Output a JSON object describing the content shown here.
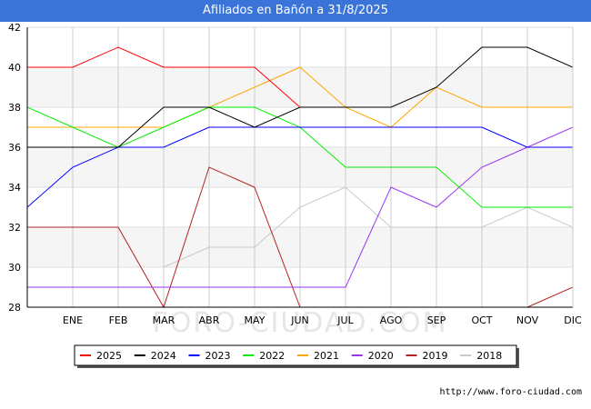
{
  "chart_data": {
    "type": "line",
    "title": "Afiliados en Bañón a 31/8/2025",
    "xlabel": "",
    "ylabel": "",
    "x": [
      "",
      "ENE",
      "FEB",
      "MAR",
      "ABR",
      "MAY",
      "JUN",
      "JUL",
      "AGO",
      "SEP",
      "OCT",
      "NOV",
      "DIC"
    ],
    "ylim": [
      28,
      42
    ],
    "yticks": [
      28,
      30,
      32,
      34,
      36,
      38,
      40,
      42
    ],
    "grid": true,
    "legend_position": "bottom",
    "series": [
      {
        "name": "2025",
        "color": "#ff0000",
        "values": [
          40,
          40,
          41,
          40,
          40,
          40,
          38,
          null,
          null,
          null,
          null,
          null,
          null
        ]
      },
      {
        "name": "2024",
        "color": "#000000",
        "values": [
          36,
          36,
          36,
          38,
          38,
          37,
          38,
          38,
          38,
          39,
          41,
          41,
          40
        ]
      },
      {
        "name": "2023",
        "color": "#0000ff",
        "values": [
          33,
          35,
          36,
          36,
          37,
          37,
          37,
          37,
          37,
          37,
          37,
          36,
          36
        ]
      },
      {
        "name": "2022",
        "color": "#00ee00",
        "values": [
          38,
          37,
          36,
          37,
          38,
          38,
          37,
          35,
          35,
          35,
          33,
          33,
          33
        ]
      },
      {
        "name": "2021",
        "color": "#ffa500",
        "values": [
          37,
          37,
          37,
          37,
          38,
          39,
          40,
          38,
          37,
          39,
          38,
          38,
          38
        ]
      },
      {
        "name": "2020",
        "color": "#9a32f0",
        "values": [
          29,
          29,
          29,
          29,
          29,
          29,
          29,
          29,
          34,
          33,
          35,
          36,
          37
        ]
      },
      {
        "name": "2019",
        "color": "#b22222",
        "values": [
          32,
          32,
          32,
          28,
          35,
          34,
          28,
          null,
          null,
          null,
          null,
          28,
          29
        ]
      },
      {
        "name": "2018",
        "color": "#c8c8c8",
        "values": [
          null,
          null,
          null,
          30,
          31,
          31,
          33,
          34,
          32,
          32,
          32,
          33,
          32
        ]
      }
    ]
  },
  "watermark": "FORO-CIUDAD.COM",
  "source": "http://www.foro-ciudad.com"
}
